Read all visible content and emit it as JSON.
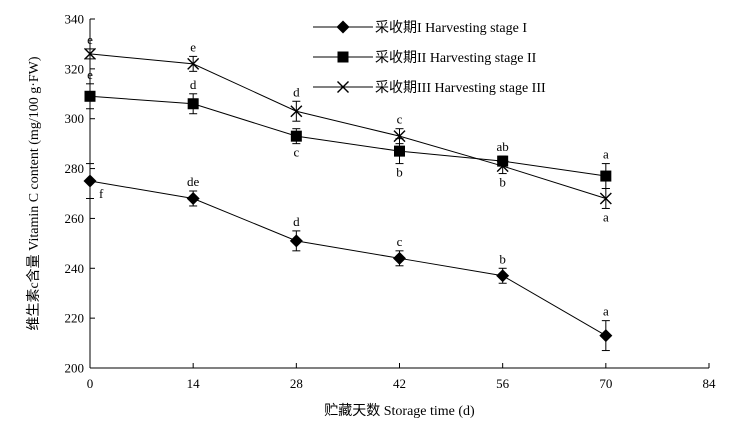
{
  "chart_data": {
    "type": "line",
    "xlabel": "贮藏天数 Storage time (d)",
    "ylabel": "维生素c含量 Vitamin C content (mg/100 g·FW)",
    "xlim": [
      0,
      84
    ],
    "ylim": [
      200,
      340
    ],
    "xticks": [
      0,
      14,
      28,
      42,
      56,
      70,
      84
    ],
    "yticks": [
      200,
      220,
      240,
      260,
      280,
      300,
      320,
      340
    ],
    "grid": false,
    "legend_position": "top-right",
    "series": [
      {
        "name": "采收期I Harvesting stage I",
        "marker": "diamond",
        "x": [
          0,
          14,
          28,
          42,
          56,
          70
        ],
        "y": [
          275,
          268,
          251,
          244,
          237,
          213
        ],
        "err": [
          7,
          3,
          4,
          3,
          3,
          6
        ],
        "labels": [
          "f",
          "de",
          "d",
          "c",
          "b",
          "a"
        ],
        "label_pos": [
          "right",
          "above",
          "above",
          "above",
          "above",
          "above"
        ]
      },
      {
        "name": "采收期II Harvesting stage II",
        "marker": "square",
        "x": [
          0,
          14,
          28,
          42,
          56,
          70
        ],
        "y": [
          309,
          306,
          293,
          287,
          283,
          277
        ],
        "err": [
          5,
          4,
          3,
          5,
          2,
          5
        ],
        "labels": [
          "e",
          "d",
          "c",
          "b",
          "ab",
          "a"
        ],
        "label_pos": [
          "above",
          "above",
          "below",
          "below",
          "above",
          "above"
        ]
      },
      {
        "name": "采收期III Harvesting stage III",
        "marker": "x",
        "x": [
          0,
          14,
          28,
          42,
          56,
          70
        ],
        "y": [
          326,
          322,
          303,
          293,
          281,
          268
        ],
        "err": [
          2,
          3,
          4,
          3,
          3,
          4
        ],
        "labels": [
          "e",
          "e",
          "d",
          "c",
          "b",
          "a"
        ],
        "label_pos": [
          "above",
          "above",
          "above",
          "above",
          "below",
          "below"
        ]
      }
    ]
  }
}
